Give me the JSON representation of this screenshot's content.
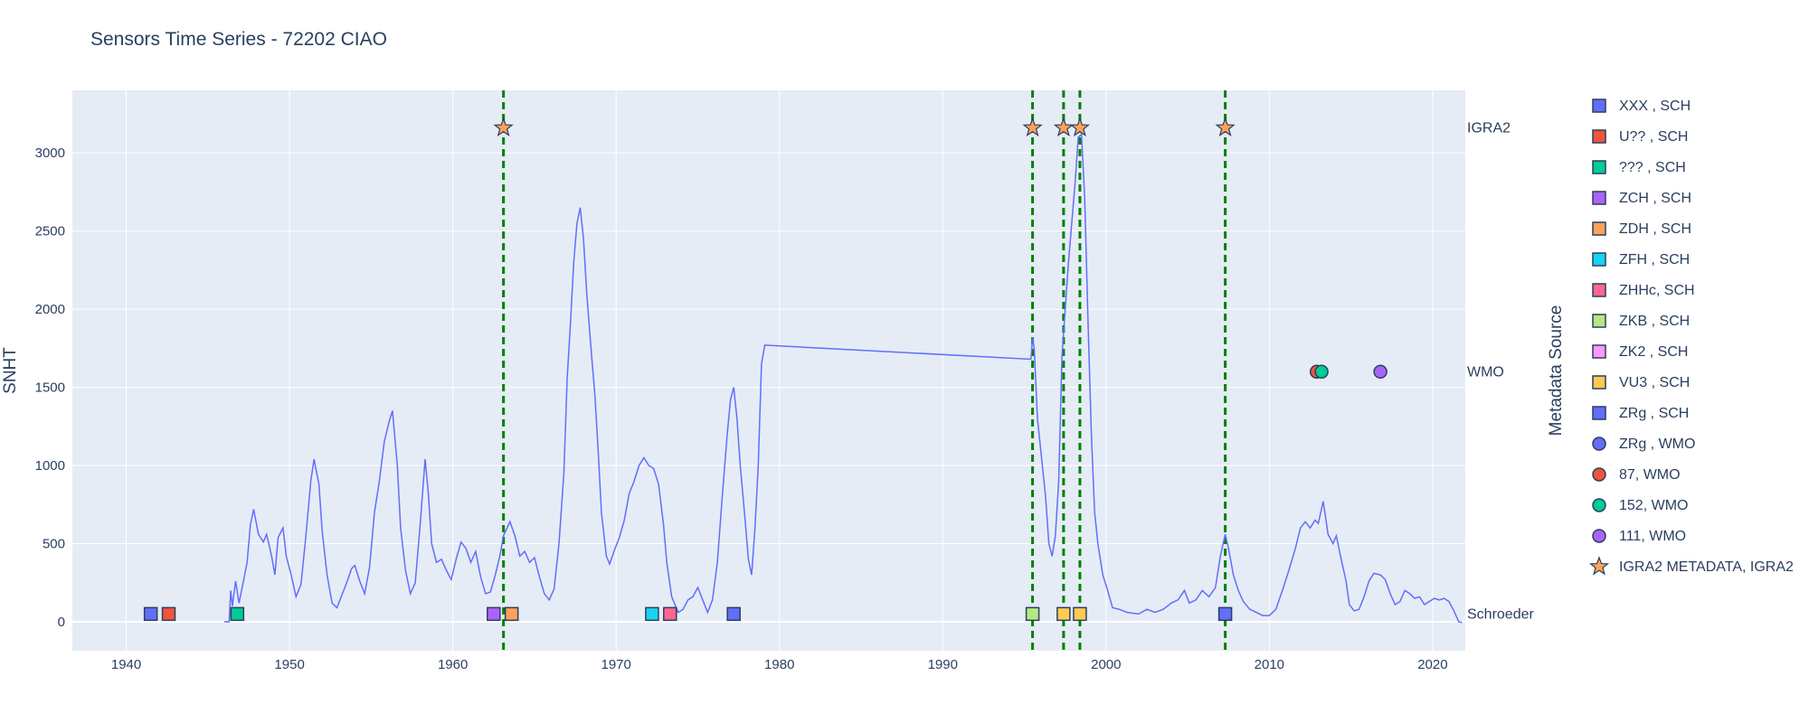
{
  "chart_data": {
    "type": "line",
    "title": "Sensors Time Series - 72202 CIAO",
    "ylabel": "SNHT",
    "legend_title": "Metadata Source",
    "xlim": [
      1936.7,
      2022.0
    ],
    "ylim": [
      -185,
      3400
    ],
    "x_ticks": [
      1940,
      1950,
      1960,
      1970,
      1980,
      1990,
      2000,
      2010,
      2020
    ],
    "y_ticks": [
      0,
      500,
      1000,
      1500,
      2000,
      2500,
      3000
    ],
    "grid": true,
    "legend_position": "right",
    "right_labels": [
      {
        "text": "IGRA2",
        "y": 3160
      },
      {
        "text": "WMO",
        "y": 1600
      },
      {
        "text": "Schroeder",
        "y": 50
      }
    ],
    "series": [
      {
        "color": "#636efa",
        "points": [
          [
            1946.0,
            0
          ],
          [
            1946.3,
            0
          ],
          [
            1946.4,
            200
          ],
          [
            1946.5,
            100
          ],
          [
            1946.7,
            260
          ],
          [
            1946.9,
            120
          ],
          [
            1947.1,
            220
          ],
          [
            1947.4,
            380
          ],
          [
            1947.6,
            620
          ],
          [
            1947.8,
            720
          ],
          [
            1948.1,
            560
          ],
          [
            1948.4,
            510
          ],
          [
            1948.6,
            560
          ],
          [
            1948.9,
            420
          ],
          [
            1949.1,
            300
          ],
          [
            1949.3,
            540
          ],
          [
            1949.6,
            600
          ],
          [
            1949.8,
            420
          ],
          [
            1950.1,
            300
          ],
          [
            1950.4,
            160
          ],
          [
            1950.7,
            240
          ],
          [
            1951.0,
            550
          ],
          [
            1951.3,
            900
          ],
          [
            1951.5,
            1040
          ],
          [
            1951.8,
            880
          ],
          [
            1952.0,
            580
          ],
          [
            1952.3,
            300
          ],
          [
            1952.6,
            120
          ],
          [
            1952.9,
            90
          ],
          [
            1953.2,
            170
          ],
          [
            1953.5,
            250
          ],
          [
            1953.8,
            340
          ],
          [
            1954.0,
            360
          ],
          [
            1954.3,
            260
          ],
          [
            1954.6,
            180
          ],
          [
            1954.9,
            350
          ],
          [
            1955.2,
            700
          ],
          [
            1955.5,
            900
          ],
          [
            1955.8,
            1150
          ],
          [
            1956.1,
            1280
          ],
          [
            1956.3,
            1350
          ],
          [
            1956.6,
            1000
          ],
          [
            1956.8,
            600
          ],
          [
            1957.1,
            330
          ],
          [
            1957.4,
            180
          ],
          [
            1957.7,
            250
          ],
          [
            1958.0,
            620
          ],
          [
            1958.3,
            1040
          ],
          [
            1958.5,
            820
          ],
          [
            1958.7,
            500
          ],
          [
            1959.0,
            380
          ],
          [
            1959.3,
            400
          ],
          [
            1959.6,
            330
          ],
          [
            1959.9,
            270
          ],
          [
            1960.2,
            400
          ],
          [
            1960.5,
            510
          ],
          [
            1960.8,
            470
          ],
          [
            1961.1,
            380
          ],
          [
            1961.4,
            450
          ],
          [
            1961.7,
            290
          ],
          [
            1962.0,
            180
          ],
          [
            1962.3,
            190
          ],
          [
            1962.6,
            300
          ],
          [
            1962.9,
            430
          ],
          [
            1963.1,
            550
          ],
          [
            1963.5,
            640
          ],
          [
            1963.8,
            550
          ],
          [
            1964.1,
            420
          ],
          [
            1964.4,
            450
          ],
          [
            1964.7,
            380
          ],
          [
            1965.0,
            410
          ],
          [
            1965.3,
            290
          ],
          [
            1965.6,
            180
          ],
          [
            1965.9,
            140
          ],
          [
            1966.2,
            210
          ],
          [
            1966.5,
            500
          ],
          [
            1966.8,
            950
          ],
          [
            1967.0,
            1550
          ],
          [
            1967.2,
            1900
          ],
          [
            1967.4,
            2300
          ],
          [
            1967.6,
            2550
          ],
          [
            1967.8,
            2650
          ],
          [
            1968.0,
            2450
          ],
          [
            1968.2,
            2100
          ],
          [
            1968.5,
            1700
          ],
          [
            1968.7,
            1450
          ],
          [
            1968.9,
            1100
          ],
          [
            1969.1,
            700
          ],
          [
            1969.4,
            420
          ],
          [
            1969.6,
            370
          ],
          [
            1969.9,
            460
          ],
          [
            1970.2,
            540
          ],
          [
            1970.5,
            650
          ],
          [
            1970.8,
            820
          ],
          [
            1971.1,
            900
          ],
          [
            1971.4,
            1000
          ],
          [
            1971.7,
            1050
          ],
          [
            1972.0,
            1000
          ],
          [
            1972.3,
            980
          ],
          [
            1972.6,
            880
          ],
          [
            1972.9,
            620
          ],
          [
            1973.1,
            380
          ],
          [
            1973.4,
            160
          ],
          [
            1973.8,
            60
          ],
          [
            1974.1,
            80
          ],
          [
            1974.4,
            140
          ],
          [
            1974.7,
            160
          ],
          [
            1975.0,
            220
          ],
          [
            1975.3,
            140
          ],
          [
            1975.6,
            60
          ],
          [
            1975.9,
            140
          ],
          [
            1976.2,
            380
          ],
          [
            1976.5,
            800
          ],
          [
            1976.8,
            1200
          ],
          [
            1977.0,
            1420
          ],
          [
            1977.2,
            1500
          ],
          [
            1977.4,
            1300
          ],
          [
            1977.6,
            1000
          ],
          [
            1977.9,
            650
          ],
          [
            1978.1,
            400
          ],
          [
            1978.3,
            300
          ],
          [
            1978.5,
            600
          ],
          [
            1978.7,
            1000
          ],
          [
            1978.9,
            1650
          ],
          [
            1979.1,
            1770
          ],
          [
            1995.4,
            1680
          ],
          [
            1995.5,
            1820
          ],
          [
            1995.6,
            1750
          ],
          [
            1995.8,
            1300
          ],
          [
            1996.0,
            1100
          ],
          [
            1996.3,
            800
          ],
          [
            1996.5,
            500
          ],
          [
            1996.7,
            420
          ],
          [
            1996.9,
            550
          ],
          [
            1997.1,
            900
          ],
          [
            1997.3,
            1700
          ],
          [
            1997.5,
            2000
          ],
          [
            1997.7,
            2300
          ],
          [
            1997.9,
            2550
          ],
          [
            1998.1,
            2800
          ],
          [
            1998.3,
            3100
          ],
          [
            1998.5,
            3120
          ],
          [
            1998.7,
            2700
          ],
          [
            1998.9,
            1900
          ],
          [
            1999.1,
            1200
          ],
          [
            1999.3,
            700
          ],
          [
            1999.5,
            500
          ],
          [
            1999.8,
            300
          ],
          [
            2000.1,
            200
          ],
          [
            2000.4,
            90
          ],
          [
            2000.8,
            80
          ],
          [
            2001.3,
            60
          ],
          [
            2002.0,
            50
          ],
          [
            2002.5,
            80
          ],
          [
            2003.0,
            60
          ],
          [
            2003.5,
            80
          ],
          [
            2004.0,
            120
          ],
          [
            2004.4,
            140
          ],
          [
            2004.8,
            200
          ],
          [
            2005.1,
            120
          ],
          [
            2005.5,
            140
          ],
          [
            2005.9,
            200
          ],
          [
            2006.3,
            160
          ],
          [
            2006.7,
            220
          ],
          [
            2007.0,
            420
          ],
          [
            2007.3,
            560
          ],
          [
            2007.5,
            470
          ],
          [
            2007.8,
            300
          ],
          [
            2008.1,
            200
          ],
          [
            2008.4,
            130
          ],
          [
            2008.8,
            80
          ],
          [
            2009.2,
            60
          ],
          [
            2009.6,
            40
          ],
          [
            2010.0,
            40
          ],
          [
            2010.4,
            80
          ],
          [
            2010.8,
            200
          ],
          [
            2011.2,
            330
          ],
          [
            2011.6,
            470
          ],
          [
            2011.9,
            600
          ],
          [
            2012.2,
            640
          ],
          [
            2012.5,
            600
          ],
          [
            2012.8,
            650
          ],
          [
            2013.0,
            630
          ],
          [
            2013.3,
            770
          ],
          [
            2013.6,
            560
          ],
          [
            2013.9,
            500
          ],
          [
            2014.1,
            550
          ],
          [
            2014.4,
            400
          ],
          [
            2014.7,
            260
          ],
          [
            2014.9,
            110
          ],
          [
            2015.2,
            70
          ],
          [
            2015.5,
            80
          ],
          [
            2015.8,
            160
          ],
          [
            2016.1,
            260
          ],
          [
            2016.4,
            310
          ],
          [
            2016.8,
            300
          ],
          [
            2017.1,
            270
          ],
          [
            2017.4,
            180
          ],
          [
            2017.7,
            110
          ],
          [
            2018.0,
            130
          ],
          [
            2018.3,
            200
          ],
          [
            2018.6,
            180
          ],
          [
            2018.9,
            150
          ],
          [
            2019.2,
            160
          ],
          [
            2019.5,
            110
          ],
          [
            2019.8,
            130
          ],
          [
            2020.1,
            150
          ],
          [
            2020.4,
            140
          ],
          [
            2020.7,
            150
          ],
          [
            2021.0,
            130
          ],
          [
            2021.3,
            70
          ],
          [
            2021.6,
            0
          ],
          [
            2021.8,
            -5
          ]
        ]
      }
    ],
    "vlines": {
      "color": "#008000",
      "x": [
        1963.1,
        1995.5,
        1997.4,
        1998.4,
        2007.3
      ]
    },
    "markers": [
      {
        "x": 1941.5,
        "y": 50,
        "symbol": "square",
        "color": "#636efa"
      },
      {
        "x": 1942.6,
        "y": 50,
        "symbol": "square",
        "color": "#ef553b"
      },
      {
        "x": 1946.8,
        "y": 50,
        "symbol": "square",
        "color": "#00cc96"
      },
      {
        "x": 1962.5,
        "y": 50,
        "symbol": "square",
        "color": "#ab63fa"
      },
      {
        "x": 1963.6,
        "y": 50,
        "symbol": "square",
        "color": "#ffa15a"
      },
      {
        "x": 1972.2,
        "y": 50,
        "symbol": "square",
        "color": "#19d3f3"
      },
      {
        "x": 1973.3,
        "y": 50,
        "symbol": "square",
        "color": "#ff6692"
      },
      {
        "x": 1977.2,
        "y": 50,
        "symbol": "square",
        "color": "#636efa"
      },
      {
        "x": 1995.5,
        "y": 50,
        "symbol": "square",
        "color": "#b6e880"
      },
      {
        "x": 1997.4,
        "y": 50,
        "symbol": "square",
        "color": "#fecb52"
      },
      {
        "x": 1998.4,
        "y": 50,
        "symbol": "square",
        "color": "#fecb52"
      },
      {
        "x": 2007.3,
        "y": 50,
        "symbol": "square",
        "color": "#636efa"
      },
      {
        "x": 2012.9,
        "y": 1600,
        "symbol": "circle",
        "color": "#ef553b"
      },
      {
        "x": 2013.2,
        "y": 1600,
        "symbol": "circle",
        "color": "#00cc96"
      },
      {
        "x": 2016.8,
        "y": 1600,
        "symbol": "circle",
        "color": "#ab63fa"
      },
      {
        "x": 1963.1,
        "y": 3160,
        "symbol": "star",
        "color": "#ffa15a"
      },
      {
        "x": 1995.5,
        "y": 3160,
        "symbol": "star",
        "color": "#ffa15a"
      },
      {
        "x": 1997.4,
        "y": 3160,
        "symbol": "star",
        "color": "#ffa15a"
      },
      {
        "x": 1998.4,
        "y": 3160,
        "symbol": "star",
        "color": "#ffa15a"
      },
      {
        "x": 2007.3,
        "y": 3160,
        "symbol": "star",
        "color": "#ffa15a"
      }
    ],
    "legend": [
      {
        "label": "XXX , SCH",
        "symbol": "square",
        "color": "#636efa"
      },
      {
        "label": "U?? , SCH",
        "symbol": "square",
        "color": "#ef553b"
      },
      {
        "label": "??? , SCH",
        "symbol": "square",
        "color": "#00cc96"
      },
      {
        "label": "ZCH , SCH",
        "symbol": "square",
        "color": "#ab63fa"
      },
      {
        "label": "ZDH , SCH",
        "symbol": "square",
        "color": "#ffa15a"
      },
      {
        "label": "ZFH , SCH",
        "symbol": "square",
        "color": "#19d3f3"
      },
      {
        "label": "ZHHc, SCH",
        "symbol": "square",
        "color": "#ff6692"
      },
      {
        "label": "ZKB , SCH",
        "symbol": "square",
        "color": "#b6e880"
      },
      {
        "label": "ZK2 , SCH",
        "symbol": "square",
        "color": "#ff97ff"
      },
      {
        "label": "VU3 , SCH",
        "symbol": "square",
        "color": "#fecb52"
      },
      {
        "label": "ZRg , SCH",
        "symbol": "square",
        "color": "#636efa"
      },
      {
        "label": "ZRg , WMO",
        "symbol": "circle",
        "color": "#636efa"
      },
      {
        "label": "87, WMO",
        "symbol": "circle",
        "color": "#ef553b"
      },
      {
        "label": "152, WMO",
        "symbol": "circle",
        "color": "#00cc96"
      },
      {
        "label": "111, WMO",
        "symbol": "circle",
        "color": "#ab63fa"
      },
      {
        "label": "IGRA2 METADATA, IGRA2",
        "symbol": "star",
        "color": "#ffa15a"
      }
    ]
  }
}
